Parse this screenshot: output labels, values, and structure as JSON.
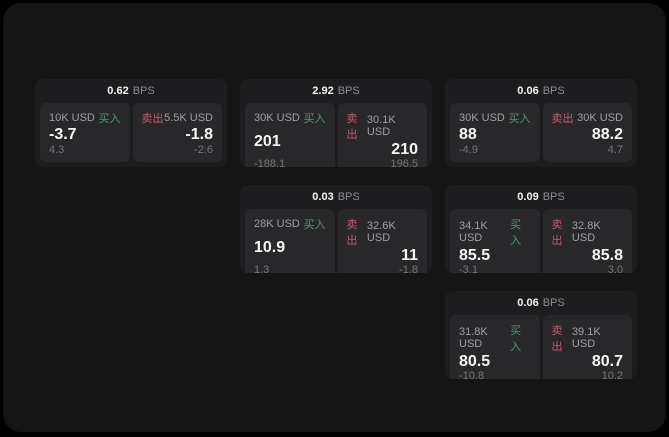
{
  "page": {
    "bps_suffix": "BPS",
    "buy_label": "买入",
    "sell_label": "卖出",
    "colors": {
      "background": "#000000",
      "surface": "#151516",
      "card": "#1d1d1f",
      "panel": "#28282a",
      "buy_green": "#4f9e6e",
      "sell_red": "#c65a6b"
    }
  },
  "cards": [
    {
      "bps": "0.62",
      "buy": {
        "amount": "10K USD",
        "price": "-3.7",
        "delta": "4.3"
      },
      "sell": {
        "amount": "5.5K USD",
        "price": "-1.8",
        "delta": "-2.6"
      }
    },
    {
      "bps": "2.92",
      "buy": {
        "amount": "30K USD",
        "price": "201",
        "delta": "-188.1"
      },
      "sell": {
        "amount": "30.1K USD",
        "price": "210",
        "delta": "196.5"
      }
    },
    {
      "bps": "0.06",
      "buy": {
        "amount": "30K USD",
        "price": "88",
        "delta": "-4.9"
      },
      "sell": {
        "amount": "30K USD",
        "price": "88.2",
        "delta": "4.7"
      }
    },
    {
      "bps": "0.03",
      "buy": {
        "amount": "28K USD",
        "price": "10.9",
        "delta": "1.3"
      },
      "sell": {
        "amount": "32.6K USD",
        "price": "11",
        "delta": "-1.8"
      }
    },
    {
      "bps": "0.09",
      "buy": {
        "amount": "34.1K USD",
        "price": "85.5",
        "delta": "-3.1"
      },
      "sell": {
        "amount": "32.8K USD",
        "price": "85.8",
        "delta": "3.0"
      }
    },
    {
      "bps": "0.06",
      "buy": {
        "amount": "31.8K USD",
        "price": "80.5",
        "delta": "-10.8"
      },
      "sell": {
        "amount": "39.1K USD",
        "price": "80.7",
        "delta": "10.2"
      }
    }
  ]
}
